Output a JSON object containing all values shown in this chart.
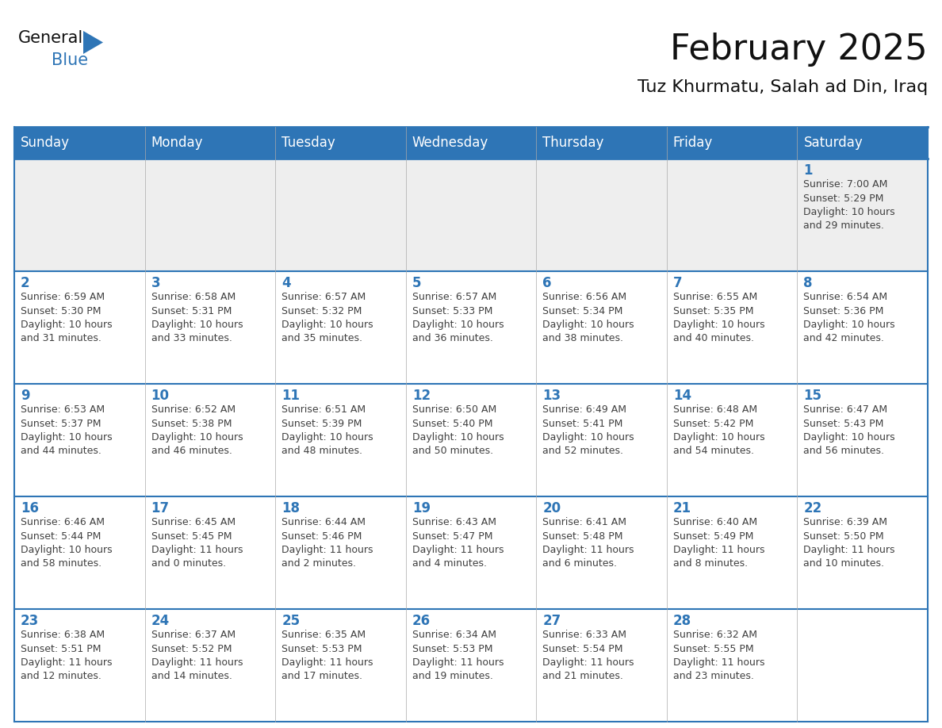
{
  "title": "February 2025",
  "subtitle": "Tuz Khurmatu, Salah ad Din, Iraq",
  "header_bg": "#2E75B6",
  "header_text_color": "#FFFFFF",
  "week1_bg": "#EEEEEE",
  "cell_bg": "#FFFFFF",
  "day_number_color": "#2E75B6",
  "cell_text_color": "#404040",
  "border_color": "#2E75B6",
  "thin_border_color": "#AAAAAA",
  "days_of_week": [
    "Sunday",
    "Monday",
    "Tuesday",
    "Wednesday",
    "Thursday",
    "Friday",
    "Saturday"
  ],
  "weeks": [
    [
      {
        "day": null,
        "info": null
      },
      {
        "day": null,
        "info": null
      },
      {
        "day": null,
        "info": null
      },
      {
        "day": null,
        "info": null
      },
      {
        "day": null,
        "info": null
      },
      {
        "day": null,
        "info": null
      },
      {
        "day": 1,
        "info": "Sunrise: 7:00 AM\nSunset: 5:29 PM\nDaylight: 10 hours\nand 29 minutes."
      }
    ],
    [
      {
        "day": 2,
        "info": "Sunrise: 6:59 AM\nSunset: 5:30 PM\nDaylight: 10 hours\nand 31 minutes."
      },
      {
        "day": 3,
        "info": "Sunrise: 6:58 AM\nSunset: 5:31 PM\nDaylight: 10 hours\nand 33 minutes."
      },
      {
        "day": 4,
        "info": "Sunrise: 6:57 AM\nSunset: 5:32 PM\nDaylight: 10 hours\nand 35 minutes."
      },
      {
        "day": 5,
        "info": "Sunrise: 6:57 AM\nSunset: 5:33 PM\nDaylight: 10 hours\nand 36 minutes."
      },
      {
        "day": 6,
        "info": "Sunrise: 6:56 AM\nSunset: 5:34 PM\nDaylight: 10 hours\nand 38 minutes."
      },
      {
        "day": 7,
        "info": "Sunrise: 6:55 AM\nSunset: 5:35 PM\nDaylight: 10 hours\nand 40 minutes."
      },
      {
        "day": 8,
        "info": "Sunrise: 6:54 AM\nSunset: 5:36 PM\nDaylight: 10 hours\nand 42 minutes."
      }
    ],
    [
      {
        "day": 9,
        "info": "Sunrise: 6:53 AM\nSunset: 5:37 PM\nDaylight: 10 hours\nand 44 minutes."
      },
      {
        "day": 10,
        "info": "Sunrise: 6:52 AM\nSunset: 5:38 PM\nDaylight: 10 hours\nand 46 minutes."
      },
      {
        "day": 11,
        "info": "Sunrise: 6:51 AM\nSunset: 5:39 PM\nDaylight: 10 hours\nand 48 minutes."
      },
      {
        "day": 12,
        "info": "Sunrise: 6:50 AM\nSunset: 5:40 PM\nDaylight: 10 hours\nand 50 minutes."
      },
      {
        "day": 13,
        "info": "Sunrise: 6:49 AM\nSunset: 5:41 PM\nDaylight: 10 hours\nand 52 minutes."
      },
      {
        "day": 14,
        "info": "Sunrise: 6:48 AM\nSunset: 5:42 PM\nDaylight: 10 hours\nand 54 minutes."
      },
      {
        "day": 15,
        "info": "Sunrise: 6:47 AM\nSunset: 5:43 PM\nDaylight: 10 hours\nand 56 minutes."
      }
    ],
    [
      {
        "day": 16,
        "info": "Sunrise: 6:46 AM\nSunset: 5:44 PM\nDaylight: 10 hours\nand 58 minutes."
      },
      {
        "day": 17,
        "info": "Sunrise: 6:45 AM\nSunset: 5:45 PM\nDaylight: 11 hours\nand 0 minutes."
      },
      {
        "day": 18,
        "info": "Sunrise: 6:44 AM\nSunset: 5:46 PM\nDaylight: 11 hours\nand 2 minutes."
      },
      {
        "day": 19,
        "info": "Sunrise: 6:43 AM\nSunset: 5:47 PM\nDaylight: 11 hours\nand 4 minutes."
      },
      {
        "day": 20,
        "info": "Sunrise: 6:41 AM\nSunset: 5:48 PM\nDaylight: 11 hours\nand 6 minutes."
      },
      {
        "day": 21,
        "info": "Sunrise: 6:40 AM\nSunset: 5:49 PM\nDaylight: 11 hours\nand 8 minutes."
      },
      {
        "day": 22,
        "info": "Sunrise: 6:39 AM\nSunset: 5:50 PM\nDaylight: 11 hours\nand 10 minutes."
      }
    ],
    [
      {
        "day": 23,
        "info": "Sunrise: 6:38 AM\nSunset: 5:51 PM\nDaylight: 11 hours\nand 12 minutes."
      },
      {
        "day": 24,
        "info": "Sunrise: 6:37 AM\nSunset: 5:52 PM\nDaylight: 11 hours\nand 14 minutes."
      },
      {
        "day": 25,
        "info": "Sunrise: 6:35 AM\nSunset: 5:53 PM\nDaylight: 11 hours\nand 17 minutes."
      },
      {
        "day": 26,
        "info": "Sunrise: 6:34 AM\nSunset: 5:53 PM\nDaylight: 11 hours\nand 19 minutes."
      },
      {
        "day": 27,
        "info": "Sunrise: 6:33 AM\nSunset: 5:54 PM\nDaylight: 11 hours\nand 21 minutes."
      },
      {
        "day": 28,
        "info": "Sunrise: 6:32 AM\nSunset: 5:55 PM\nDaylight: 11 hours\nand 23 minutes."
      },
      {
        "day": null,
        "info": null
      }
    ]
  ],
  "logo_color_general": "#111111",
  "logo_color_blue": "#2E75B6",
  "logo_triangle_color": "#2E75B6",
  "title_fontsize": 32,
  "subtitle_fontsize": 16,
  "header_fontsize": 12,
  "day_number_fontsize": 12,
  "cell_info_fontsize": 9
}
